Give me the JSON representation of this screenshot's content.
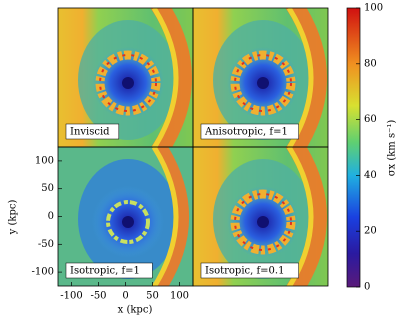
{
  "chart_data": {
    "type": "heatmap",
    "panels": [
      "Inviscid",
      "Anisotropic, f=1",
      "Isotropic, f=1",
      "Isotropic, f=0.1"
    ],
    "xlabel": "x (kpc)",
    "ylabel": "y (kpc)",
    "xlim": [
      -125,
      125
    ],
    "xticks": [
      -100,
      -50,
      0,
      50,
      100
    ],
    "ylim": [
      -125,
      125
    ],
    "yticks": [
      -100,
      -50,
      0,
      50,
      100
    ],
    "colorbar_label": "σx (km s⁻¹)",
    "clim": [
      0,
      100
    ],
    "cticks": [
      0,
      20,
      40,
      60,
      80,
      100
    ]
  }
}
